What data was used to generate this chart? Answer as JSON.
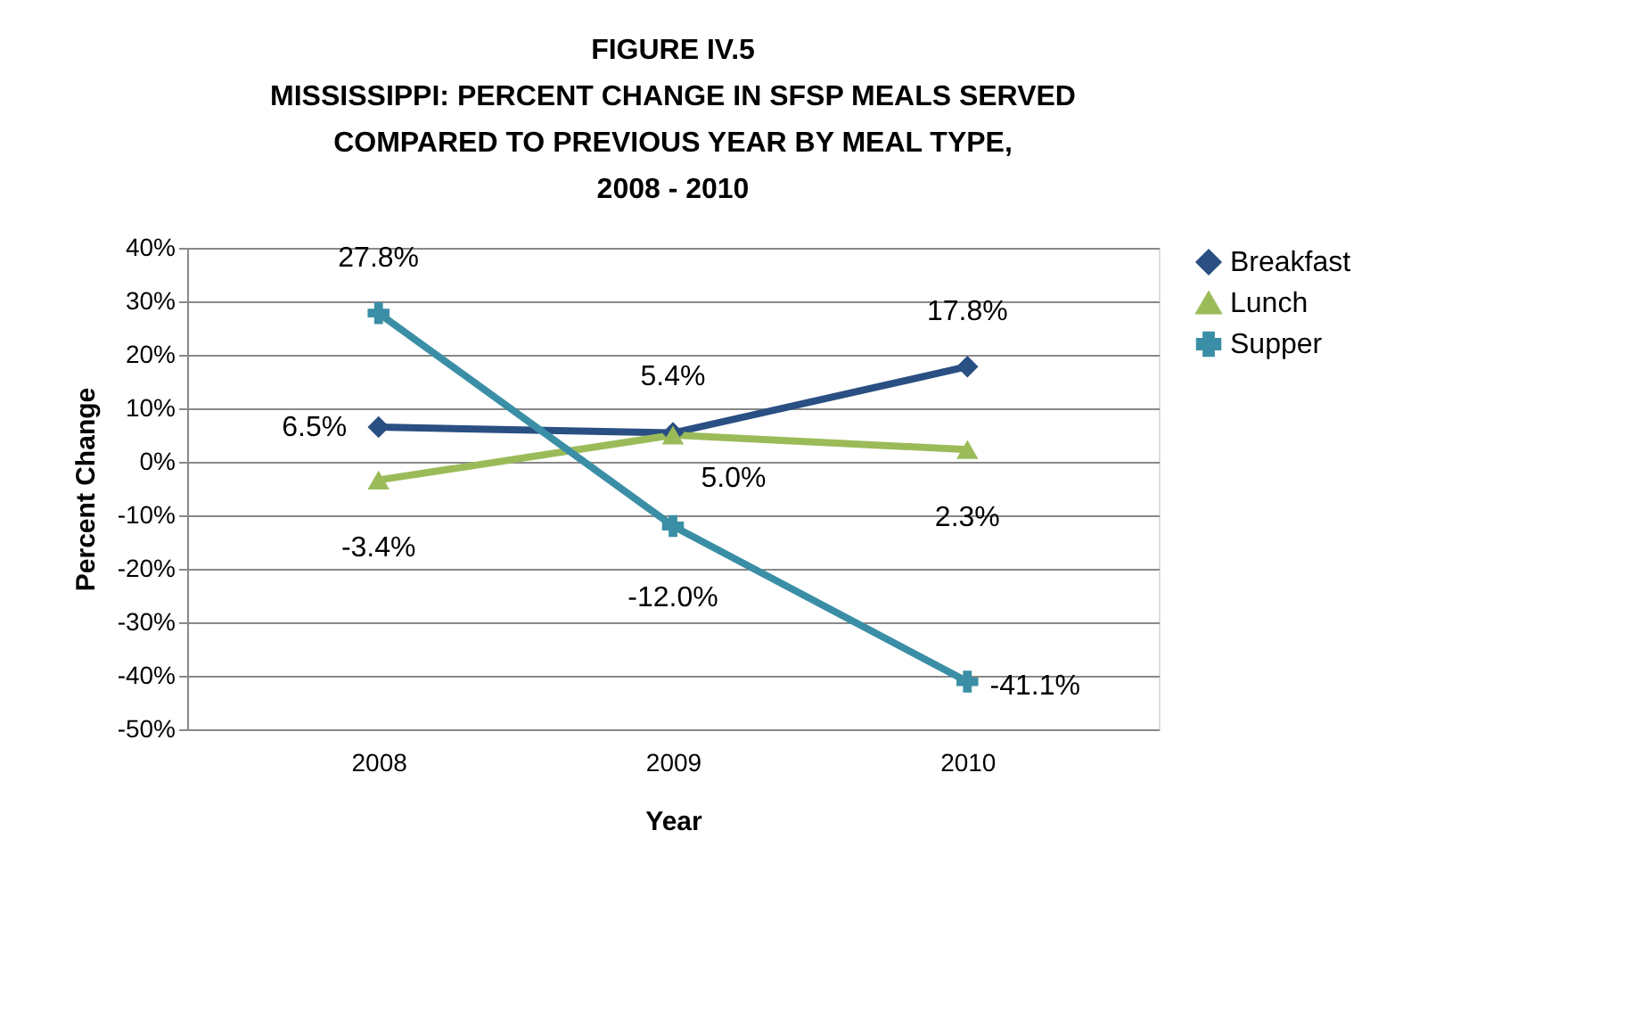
{
  "chart_data": {
    "type": "line",
    "title": "FIGURE IV.5\nMISSISSIPPI: PERCENT CHANGE IN SFSP MEALS SERVED\nCOMPARED TO PREVIOUS YEAR BY MEAL TYPE,\n2008 - 2010",
    "xlabel": "Year",
    "ylabel": "Percent Change",
    "categories": [
      "2008",
      "2009",
      "2010"
    ],
    "series": [
      {
        "name": "Breakfast",
        "color": "#2a4f82",
        "marker": "diamond",
        "values": [
          6.5,
          5.4,
          17.8
        ],
        "value_labels": [
          "6.5%",
          "5.4%",
          "17.8%"
        ]
      },
      {
        "name": "Lunch",
        "color": "#9bbb59",
        "marker": "triangle",
        "values": [
          -3.4,
          5.0,
          2.3
        ],
        "value_labels": [
          "-3.4%",
          "5.0%",
          "2.3%"
        ]
      },
      {
        "name": "Supper",
        "color": "#3a8fa6",
        "marker": "cross",
        "values": [
          27.8,
          -12.0,
          -41.1
        ],
        "value_labels": [
          "27.8%",
          "-12.0%",
          "-41.1%"
        ]
      }
    ],
    "ylim": [
      -50,
      40
    ],
    "yticks": [
      {
        "value": -50,
        "label": "-50%"
      },
      {
        "value": -40,
        "label": "-40%"
      },
      {
        "value": -30,
        "label": "-30%"
      },
      {
        "value": -20,
        "label": "-20%"
      },
      {
        "value": -10,
        "label": "-10%"
      },
      {
        "value": 0,
        "label": "0%"
      },
      {
        "value": 10,
        "label": "10%"
      },
      {
        "value": 20,
        "label": "20%"
      },
      {
        "value": 30,
        "label": "30%"
      },
      {
        "value": 40,
        "label": "40%"
      }
    ],
    "grid": "y",
    "legend": "right",
    "line_style": "solid"
  }
}
